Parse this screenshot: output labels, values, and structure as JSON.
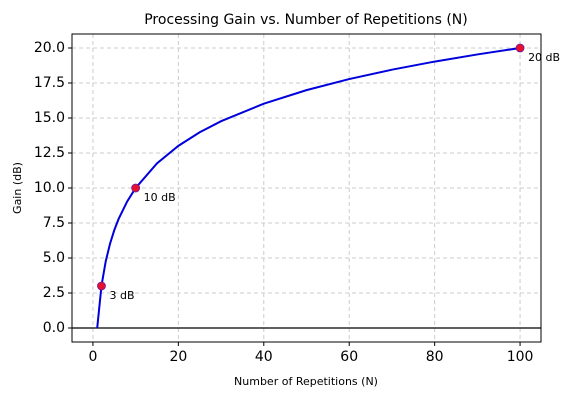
{
  "chart_data": {
    "type": "line",
    "title": "Processing Gain vs. Number of Repetitions (N)",
    "x_label": "Number of Repetitions (N)",
    "y_label": "Gain (dB)",
    "series": [
      {
        "color": "#0000dd",
        "x": [
          1,
          2,
          3,
          4,
          5,
          6,
          8,
          10,
          15,
          20,
          25,
          30,
          40,
          50,
          60,
          70,
          80,
          90,
          100
        ],
        "values": [
          0,
          3.01,
          4.77,
          6.02,
          6.99,
          7.78,
          9.03,
          10,
          11.76,
          13.01,
          13.98,
          14.77,
          16.02,
          16.99,
          17.78,
          18.45,
          19.03,
          19.54,
          20
        ]
      },
      {
        "type": "scatter",
        "color": "#e8102a",
        "x": [
          2,
          10,
          100
        ],
        "values": [
          3,
          10,
          20
        ],
        "value_labels": [
          "3 dB",
          "10 dB",
          "20 dB"
        ]
      }
    ],
    "xlim": [
      -4.9,
      104.9
    ],
    "ylim": [
      -1,
      21
    ],
    "xticks": [
      0,
      20,
      40,
      60,
      80,
      100
    ],
    "yticks": [
      {
        "value": 0,
        "label": "0.0"
      },
      {
        "value": 2.5,
        "label": "2.5"
      },
      {
        "value": 5,
        "label": "5.0"
      },
      {
        "value": 7.5,
        "label": "7.5"
      },
      {
        "value": 10,
        "label": "10.0"
      },
      {
        "value": 12.5,
        "label": "12.5"
      },
      {
        "value": 15,
        "label": "15.0"
      },
      {
        "value": 17.5,
        "label": "17.5"
      },
      {
        "value": 20,
        "label": "20.0"
      }
    ],
    "hline": 0,
    "grid": true
  }
}
